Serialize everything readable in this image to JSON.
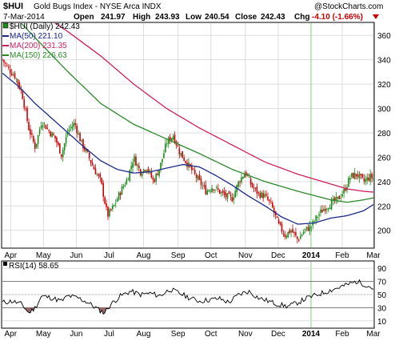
{
  "header": {
    "symbol": "$HUI",
    "name": "Gold Bugs Index - NYSE Arca INDX",
    "source": "@StockCharts.com",
    "date": "7-Mar-2014",
    "open_label": "Open",
    "open": "241.97",
    "high_label": "High",
    "high": "243.93",
    "low_label": "Low",
    "low": "240.54",
    "close_label": "Close",
    "close": "242.43",
    "chg_label": "Chg",
    "chg": "-4.10 (-1.66%)"
  },
  "colors": {
    "price_up": "#1a8a1a",
    "price_down": "#cc0000",
    "ma50": "#1c2a8c",
    "ma200": "#d0205a",
    "ma150": "#2a8a2a",
    "rsi": "#000000",
    "rsi_oversold_fill": "#9a6a6a",
    "grid": "#dddddd",
    "year_marker": "#88cc88"
  },
  "chart_data": [
    {
      "type": "candlestick",
      "legend_position": "top-left",
      "legend": [
        {
          "key": "price",
          "label": "$HUI (Daily) 242.43"
        },
        {
          "key": "ma50",
          "label": "MA(50) 221.10"
        },
        {
          "key": "ma200",
          "label": "MA(200) 231.35"
        },
        {
          "key": "ma150",
          "label": "MA(150) 226.63"
        }
      ],
      "ylim": [
        186,
        370
      ],
      "yticks": [
        200,
        220,
        240,
        260,
        280,
        300,
        320,
        340,
        360
      ],
      "grid": true,
      "x_months": [
        {
          "label": "Apr",
          "pos": 0.025
        },
        {
          "label": "May",
          "pos": 0.125
        },
        {
          "label": "Jun",
          "pos": 0.225
        },
        {
          "label": "Jul",
          "pos": 0.325
        },
        {
          "label": "Aug",
          "pos": 0.43
        },
        {
          "label": "Sep",
          "pos": 0.535
        },
        {
          "label": "Oct",
          "pos": 0.635
        },
        {
          "label": "Nov",
          "pos": 0.74
        },
        {
          "label": "Dec",
          "pos": 0.84
        },
        {
          "label": "2014",
          "pos": 0.94,
          "bold": true
        },
        {
          "label": "Feb",
          "pos": 1.035
        },
        {
          "label": "Mar",
          "pos": 1.13
        }
      ],
      "price_anchors": [
        [
          0.0,
          340
        ],
        [
          0.02,
          332
        ],
        [
          0.04,
          326
        ],
        [
          0.06,
          312
        ],
        [
          0.08,
          284
        ],
        [
          0.1,
          268
        ],
        [
          0.12,
          290
        ],
        [
          0.14,
          282
        ],
        [
          0.16,
          276
        ],
        [
          0.18,
          262
        ],
        [
          0.2,
          282
        ],
        [
          0.22,
          288
        ],
        [
          0.24,
          272
        ],
        [
          0.26,
          262
        ],
        [
          0.28,
          250
        ],
        [
          0.3,
          240
        ],
        [
          0.32,
          212
        ],
        [
          0.34,
          220
        ],
        [
          0.36,
          232
        ],
        [
          0.38,
          242
        ],
        [
          0.4,
          260
        ],
        [
          0.42,
          248
        ],
        [
          0.44,
          252
        ],
        [
          0.46,
          240
        ],
        [
          0.48,
          252
        ],
        [
          0.5,
          272
        ],
        [
          0.52,
          278
        ],
        [
          0.54,
          264
        ],
        [
          0.56,
          256
        ],
        [
          0.58,
          248
        ],
        [
          0.6,
          240
        ],
        [
          0.62,
          232
        ],
        [
          0.64,
          236
        ],
        [
          0.66,
          232
        ],
        [
          0.68,
          228
        ],
        [
          0.7,
          226
        ],
        [
          0.72,
          240
        ],
        [
          0.74,
          248
        ],
        [
          0.76,
          236
        ],
        [
          0.78,
          230
        ],
        [
          0.8,
          228
        ],
        [
          0.82,
          220
        ],
        [
          0.84,
          205
        ],
        [
          0.86,
          196
        ],
        [
          0.88,
          200
        ],
        [
          0.9,
          192
        ],
        [
          0.92,
          200
        ],
        [
          0.94,
          203
        ],
        [
          0.96,
          212
        ],
        [
          0.98,
          218
        ],
        [
          1.0,
          222
        ],
        [
          1.02,
          225
        ],
        [
          1.04,
          232
        ],
        [
          1.06,
          244
        ],
        [
          1.08,
          246
        ],
        [
          1.1,
          240
        ],
        [
          1.12,
          244
        ],
        [
          1.13,
          242.43
        ]
      ],
      "ma50_anchors": [
        [
          0.0,
          329
        ],
        [
          0.05,
          318
        ],
        [
          0.1,
          304
        ],
        [
          0.15,
          292
        ],
        [
          0.2,
          280
        ],
        [
          0.25,
          268
        ],
        [
          0.3,
          257
        ],
        [
          0.35,
          250
        ],
        [
          0.4,
          247
        ],
        [
          0.45,
          248
        ],
        [
          0.5,
          251
        ],
        [
          0.55,
          254
        ],
        [
          0.6,
          252
        ],
        [
          0.65,
          245
        ],
        [
          0.7,
          237
        ],
        [
          0.75,
          228
        ],
        [
          0.8,
          220
        ],
        [
          0.85,
          211
        ],
        [
          0.9,
          205
        ],
        [
          0.95,
          206
        ],
        [
          1.0,
          210
        ],
        [
          1.05,
          212
        ],
        [
          1.1,
          216
        ],
        [
          1.13,
          221.1
        ]
      ],
      "ma200_anchors": [
        [
          0.15,
          372
        ],
        [
          0.2,
          363
        ],
        [
          0.3,
          343
        ],
        [
          0.4,
          320
        ],
        [
          0.5,
          300
        ],
        [
          0.6,
          284
        ],
        [
          0.7,
          270
        ],
        [
          0.8,
          256
        ],
        [
          0.9,
          246
        ],
        [
          1.0,
          238
        ],
        [
          1.05,
          234
        ],
        [
          1.1,
          232
        ],
        [
          1.13,
          231.35
        ]
      ],
      "ma150_anchors": [
        [
          0.05,
          372
        ],
        [
          0.1,
          358
        ],
        [
          0.2,
          330
        ],
        [
          0.3,
          304
        ],
        [
          0.4,
          287
        ],
        [
          0.5,
          275
        ],
        [
          0.6,
          263
        ],
        [
          0.7,
          250
        ],
        [
          0.8,
          240
        ],
        [
          0.9,
          232
        ],
        [
          1.0,
          225
        ],
        [
          1.05,
          223
        ],
        [
          1.1,
          225
        ],
        [
          1.13,
          226.63
        ]
      ]
    },
    {
      "type": "line",
      "legend_label": "RSI(14) 58.65",
      "ylim": [
        0,
        100
      ],
      "yticks": [
        10,
        30,
        50,
        70,
        90
      ],
      "reference_lines": [
        30,
        70
      ],
      "rsi_anchors": [
        [
          0.0,
          38
        ],
        [
          0.03,
          40
        ],
        [
          0.06,
          35
        ],
        [
          0.08,
          22
        ],
        [
          0.1,
          30
        ],
        [
          0.12,
          48
        ],
        [
          0.15,
          45
        ],
        [
          0.18,
          40
        ],
        [
          0.2,
          48
        ],
        [
          0.23,
          45
        ],
        [
          0.26,
          38
        ],
        [
          0.29,
          28
        ],
        [
          0.31,
          22
        ],
        [
          0.33,
          35
        ],
        [
          0.36,
          48
        ],
        [
          0.39,
          55
        ],
        [
          0.42,
          50
        ],
        [
          0.45,
          52
        ],
        [
          0.48,
          48
        ],
        [
          0.51,
          58
        ],
        [
          0.54,
          52
        ],
        [
          0.57,
          45
        ],
        [
          0.6,
          40
        ],
        [
          0.63,
          42
        ],
        [
          0.66,
          44
        ],
        [
          0.69,
          38
        ],
        [
          0.72,
          50
        ],
        [
          0.75,
          55
        ],
        [
          0.78,
          45
        ],
        [
          0.81,
          40
        ],
        [
          0.84,
          35
        ],
        [
          0.87,
          32
        ],
        [
          0.9,
          38
        ],
        [
          0.93,
          45
        ],
        [
          0.96,
          50
        ],
        [
          0.99,
          55
        ],
        [
          1.02,
          60
        ],
        [
          1.05,
          65
        ],
        [
          1.08,
          70
        ],
        [
          1.1,
          66
        ],
        [
          1.12,
          62
        ],
        [
          1.13,
          58.65
        ]
      ]
    }
  ]
}
